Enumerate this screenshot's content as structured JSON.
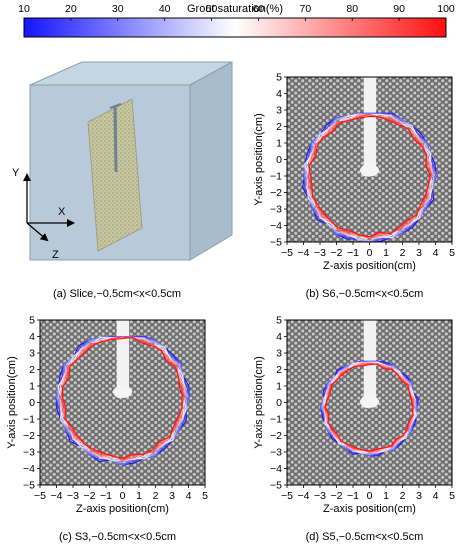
{
  "colorbar": {
    "title": "Grout saturation(%)",
    "ticks": [
      10,
      20,
      30,
      40,
      50,
      60,
      70,
      80,
      90,
      100
    ],
    "colors": {
      "low": "#1414ff",
      "mid": "#ffffff",
      "high": "#ff1010"
    }
  },
  "panel_a": {
    "caption": "(a) Slice,−0.5cm<x<0.5cm",
    "axes": {
      "y": "Y",
      "x": "X",
      "z": "Z"
    }
  },
  "chart_data": [
    {
      "type": "contour",
      "id": "b",
      "caption": "(b) S6,−0.5cm<x<0.5cm",
      "xlabel": "Z-axis position(cm)",
      "ylabel": "Y-axis position(cm)",
      "xlim": [
        -5,
        5
      ],
      "ylim": [
        -5,
        5
      ],
      "xticks": [
        -5,
        -4,
        -3,
        -2,
        -1,
        0,
        1,
        2,
        3,
        4,
        5
      ],
      "yticks": [
        -5,
        -4,
        -3,
        -2,
        -1,
        0,
        1,
        2,
        3,
        4,
        5
      ],
      "center": [
        0,
        -1
      ],
      "outer_radius": 4.0,
      "inner_radius": 3.6,
      "top_y": 2.8,
      "levels": [
        10,
        20,
        30,
        40,
        50,
        60,
        70,
        80,
        90,
        100
      ]
    },
    {
      "type": "contour",
      "id": "c",
      "caption": "(c) S3,−0.5cm<x<0.5cm",
      "xlabel": "Z-axis position(cm)",
      "ylabel": "Y-axis position(cm)",
      "xlim": [
        -5,
        5
      ],
      "ylim": [
        -5,
        5
      ],
      "xticks": [
        -5,
        -4,
        -3,
        -2,
        -1,
        0,
        1,
        2,
        3,
        4,
        5
      ],
      "yticks": [
        -5,
        -4,
        -3,
        -2,
        -1,
        0,
        1,
        2,
        3,
        4,
        5
      ],
      "center": [
        0,
        0.3
      ],
      "outer_radius": 4.0,
      "inner_radius": 3.6,
      "top_y": 4.0,
      "levels": [
        10,
        20,
        30,
        40,
        50,
        60,
        70,
        80,
        90,
        100
      ]
    },
    {
      "type": "contour",
      "id": "d",
      "caption": "(d) S5,−0.5cm<x<0.5cm",
      "xlabel": "Z-axis position(cm)",
      "ylabel": "Y-axis position(cm)",
      "xlim": [
        -5,
        5
      ],
      "ylim": [
        -5,
        5
      ],
      "xticks": [
        -5,
        -4,
        -3,
        -2,
        -1,
        0,
        1,
        2,
        3,
        4,
        5
      ],
      "yticks": [
        -5,
        -4,
        -3,
        -2,
        -1,
        0,
        1,
        2,
        3,
        4,
        5
      ],
      "center": [
        0,
        -0.3
      ],
      "outer_radius": 2.9,
      "inner_radius": 2.6,
      "top_y": 2.5,
      "levels": [
        10,
        20,
        30,
        40,
        50,
        60,
        70,
        80,
        90,
        100
      ]
    }
  ]
}
